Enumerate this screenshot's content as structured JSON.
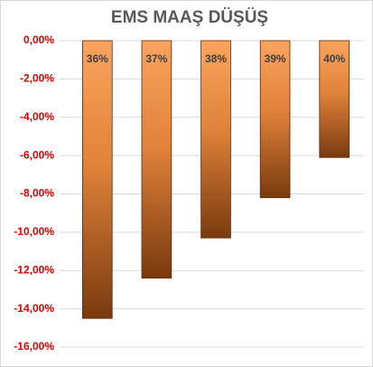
{
  "chart_data": {
    "type": "bar",
    "title": "EMS MAAŞ DÜŞÜŞ",
    "categories": [
      "36%",
      "37%",
      "38%",
      "39%",
      "40%"
    ],
    "values": [
      -14.5,
      -12.4,
      -10.3,
      -8.2,
      -6.1
    ],
    "color": "#f79646",
    "ylim": [
      -16,
      0
    ],
    "yticks": [
      {
        "value": 0,
        "label": "0,00%"
      },
      {
        "value": -2,
        "label": "-2,00%"
      },
      {
        "value": -4,
        "label": "-4,00%"
      },
      {
        "value": -6,
        "label": "-6,00%"
      },
      {
        "value": -8,
        "label": "-8,00%"
      },
      {
        "value": -10,
        "label": "-10,00%"
      },
      {
        "value": -12,
        "label": "-12,00%"
      },
      {
        "value": -14,
        "label": "-14,00%"
      },
      {
        "value": -16,
        "label": "-16,00%"
      }
    ],
    "grid": true
  }
}
